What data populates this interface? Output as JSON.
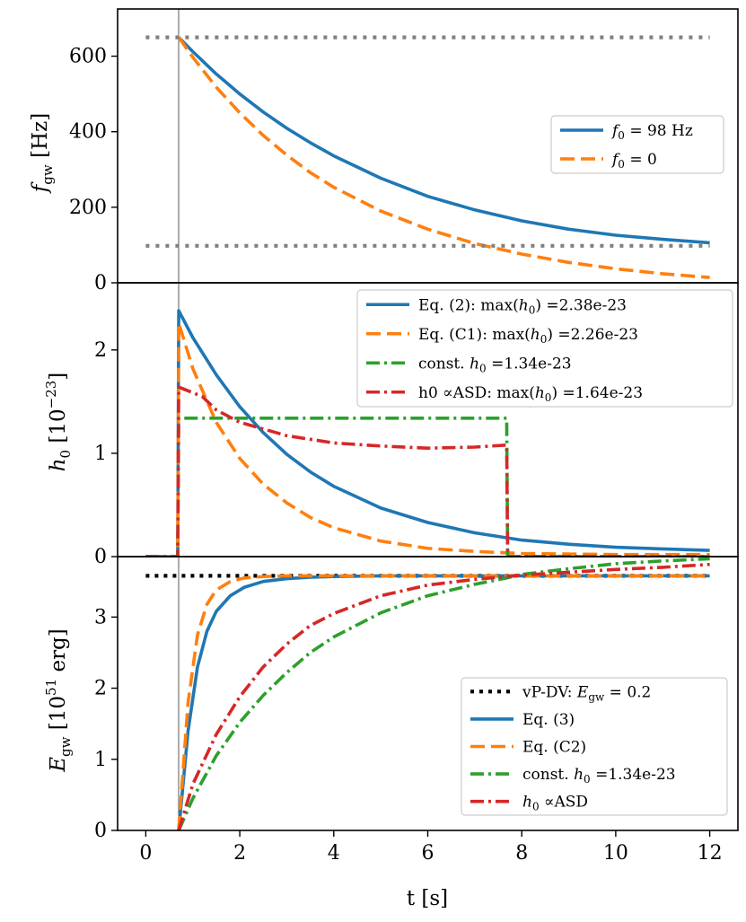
{
  "chart_data": [
    {
      "type": "line",
      "ylabel": "f_gw [Hz]",
      "xlim": [
        -0.6,
        12.6
      ],
      "ylim": [
        0,
        725
      ],
      "yticks": [
        "0",
        "200",
        "400",
        "600"
      ],
      "legend_position": "center-right",
      "series": [
        {
          "name": "f0 = 98 Hz",
          "label": "f0 = 98 Hz",
          "color": "#1f77b4",
          "style": "solid",
          "x": [
            0.7,
            1,
            1.5,
            2,
            2.5,
            3,
            3.5,
            4,
            5,
            6,
            7,
            8,
            9,
            10,
            11,
            12
          ],
          "y": [
            650,
            612,
            553,
            500,
            452,
            409,
            371,
            336,
            277,
            229,
            193,
            164,
            142,
            126,
            115,
            106
          ]
        },
        {
          "name": "f0 = 0",
          "label": "f0 = 0",
          "color": "#ff7f0e",
          "style": "dashed",
          "x": [
            0.7,
            1,
            1.5,
            2,
            2.5,
            3,
            3.5,
            4,
            5,
            6,
            7,
            8,
            9,
            10,
            11,
            12
          ],
          "y": [
            650,
            597,
            518,
            450,
            390,
            338,
            292,
            253,
            190,
            142,
            104,
            76,
            54,
            37,
            24,
            14
          ]
        },
        {
          "name": "upper dotted level",
          "color": "#808080",
          "style": "dotted",
          "x": [
            0,
            12
          ],
          "y": [
            650,
            650
          ]
        },
        {
          "name": "lower dotted level",
          "color": "#808080",
          "style": "dotted",
          "x": [
            0,
            12
          ],
          "y": [
            98,
            98
          ]
        }
      ]
    },
    {
      "type": "line",
      "ylabel": "h_0 [10^-23]",
      "xlim": [
        -0.6,
        12.6
      ],
      "ylim": [
        0,
        2.65
      ],
      "yticks": [
        "0",
        "1",
        "2"
      ],
      "legend_position": "top-right",
      "series": [
        {
          "name": "Eq. (2)",
          "label": "Eq. (2): max(h0) =2.38e-23",
          "color": "#1f77b4",
          "style": "solid",
          "x": [
            0,
            0.68,
            0.7,
            1,
            1.5,
            2,
            2.5,
            3,
            3.5,
            4,
            5,
            6,
            7,
            8,
            9,
            10,
            11,
            12
          ],
          "y": [
            0,
            0,
            2.38,
            2.12,
            1.76,
            1.45,
            1.2,
            0.99,
            0.82,
            0.68,
            0.47,
            0.33,
            0.23,
            0.16,
            0.12,
            0.09,
            0.075,
            0.06
          ]
        },
        {
          "name": "Eq. (C1)",
          "label": "Eq. (C1): max(h0) =2.26e-23",
          "color": "#ff7f0e",
          "style": "dashed",
          "x": [
            0,
            0.68,
            0.7,
            1,
            1.5,
            2,
            2.5,
            3,
            3.5,
            4,
            5,
            6,
            7,
            8,
            9,
            10,
            11,
            12
          ],
          "y": [
            0,
            0,
            2.26,
            1.82,
            1.3,
            0.95,
            0.7,
            0.52,
            0.38,
            0.28,
            0.15,
            0.08,
            0.05,
            0.03,
            0.025,
            0.02,
            0.02,
            0.02
          ]
        },
        {
          "name": "const. h0",
          "label": "const. h0 =1.34e-23",
          "color": "#2ca02c",
          "style": "dashdot",
          "x": [
            0,
            0.68,
            0.7,
            7.68,
            7.7,
            12
          ],
          "y": [
            0,
            0,
            1.34,
            1.34,
            0,
            0
          ]
        },
        {
          "name": "h0 proportional ASD",
          "label": "h0 ∝ASD: max(h0) =1.64e-23",
          "color": "#d62728",
          "style": "dashdot",
          "x": [
            0,
            0.68,
            0.7,
            1.2,
            1.5,
            2,
            3,
            4,
            5,
            6,
            7,
            7.68,
            7.7,
            12
          ],
          "y": [
            0,
            0,
            1.64,
            1.55,
            1.42,
            1.3,
            1.17,
            1.1,
            1.07,
            1.05,
            1.06,
            1.08,
            0,
            0
          ]
        }
      ]
    },
    {
      "type": "line",
      "ylabel": "E_gw [10^51 erg]",
      "xlabel": "t [s]",
      "xlim": [
        -0.6,
        12.6
      ],
      "ylim": [
        0,
        3.85
      ],
      "xticks": [
        "0",
        "2",
        "4",
        "6",
        "8",
        "10",
        "12"
      ],
      "yticks": [
        "0",
        "1",
        "2",
        "3"
      ],
      "legend_position": "bottom-right",
      "series": [
        {
          "name": "vP-DV",
          "label": "vP-DV: Egw = 0.2",
          "color": "#000000",
          "style": "dotted",
          "x": [
            0,
            12
          ],
          "y": [
            3.58,
            3.58
          ]
        },
        {
          "name": "Eq. (3)",
          "label": "Eq. (3)",
          "color": "#1f77b4",
          "style": "solid",
          "x": [
            0.7,
            0.9,
            1.1,
            1.3,
            1.5,
            1.8,
            2.1,
            2.5,
            3,
            3.5,
            4,
            5,
            6,
            8,
            10,
            12
          ],
          "y": [
            0,
            1.4,
            2.3,
            2.8,
            3.08,
            3.3,
            3.42,
            3.5,
            3.54,
            3.56,
            3.57,
            3.58,
            3.58,
            3.58,
            3.58,
            3.58
          ]
        },
        {
          "name": "Eq. (C2)",
          "label": "Eq. (C2)",
          "color": "#ff7f0e",
          "style": "dashed",
          "x": [
            0.7,
            0.9,
            1.1,
            1.3,
            1.5,
            1.8,
            2.1,
            2.5,
            3,
            3.5,
            4,
            5,
            6,
            8,
            10,
            12
          ],
          "y": [
            0,
            1.8,
            2.75,
            3.18,
            3.38,
            3.5,
            3.55,
            3.57,
            3.58,
            3.58,
            3.58,
            3.58,
            3.58,
            3.58,
            3.58,
            3.58
          ]
        },
        {
          "name": "const. h0",
          "label": "const. h0 =1.34e-23",
          "color": "#2ca02c",
          "style": "dashdot",
          "x": [
            0.7,
            1,
            1.5,
            2,
            2.5,
            3,
            3.5,
            4,
            5,
            6,
            7,
            7.68,
            8,
            9,
            10,
            11,
            12
          ],
          "y": [
            0,
            0.45,
            1.05,
            1.52,
            1.9,
            2.22,
            2.5,
            2.72,
            3.06,
            3.3,
            3.46,
            3.55,
            3.6,
            3.68,
            3.75,
            3.79,
            3.82
          ]
        },
        {
          "name": "h0 proportional ASD",
          "label": "h0 ∝ASD",
          "color": "#d62728",
          "style": "dashdot",
          "x": [
            0.7,
            1,
            1.5,
            2,
            2.5,
            3,
            3.5,
            4,
            5,
            6,
            7,
            7.68,
            8,
            9,
            10,
            11,
            12
          ],
          "y": [
            0,
            0.65,
            1.35,
            1.88,
            2.3,
            2.62,
            2.88,
            3.05,
            3.3,
            3.45,
            3.53,
            3.57,
            3.59,
            3.63,
            3.67,
            3.7,
            3.74
          ]
        }
      ]
    }
  ]
}
